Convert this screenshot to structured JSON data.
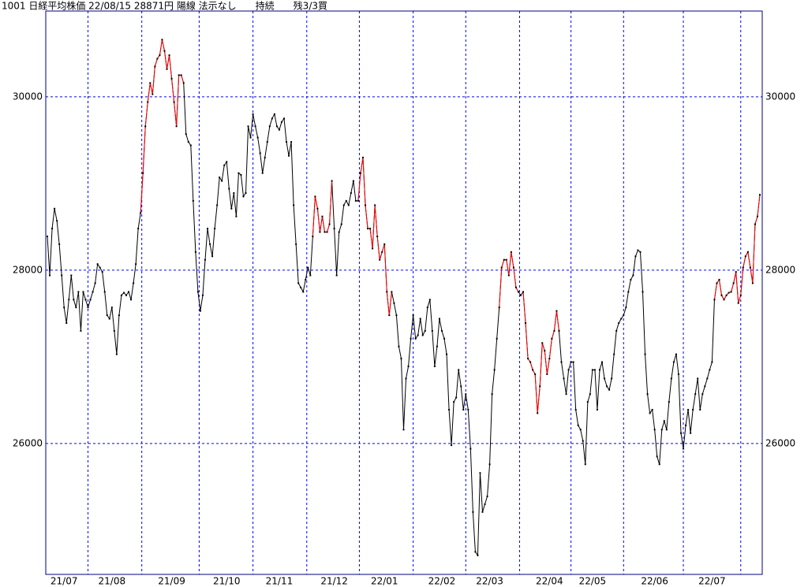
{
  "chart_data": {
    "type": "line",
    "title": "1001 日経平均株価 22/08/15 28871円 陽線 法示なし　　持続　　残3/3買",
    "categories": [
      null,
      null,
      null,
      null,
      null,
      null,
      null,
      "21/07",
      null,
      null,
      null,
      null,
      null,
      null,
      null,
      null,
      null,
      null,
      null,
      null,
      null,
      null,
      null,
      null,
      null,
      null,
      null,
      "21/08",
      null,
      null,
      null,
      null,
      null,
      null,
      null,
      null,
      null,
      null,
      null,
      null,
      null,
      null,
      null,
      null,
      null,
      null,
      null,
      null,
      null,
      null,
      null,
      null,
      "21/09",
      null,
      null,
      null,
      null,
      null,
      null,
      null,
      null,
      null,
      null,
      null,
      null,
      null,
      null,
      null,
      null,
      null,
      null,
      null,
      null,
      null,
      null,
      "21/10",
      null,
      null,
      null,
      null,
      null,
      null,
      null,
      null,
      null,
      null,
      null,
      null,
      null,
      null,
      null,
      null,
      null,
      null,
      null,
      null,
      null,
      "21/11",
      null,
      null,
      null,
      null,
      null,
      null,
      null,
      null,
      null,
      null,
      null,
      null,
      null,
      null,
      null,
      null,
      null,
      null,
      null,
      null,
      null,
      null,
      "21/12",
      null,
      null,
      null,
      null,
      null,
      null,
      null,
      null,
      null,
      null,
      null,
      null,
      null,
      null,
      null,
      null,
      null,
      null,
      null,
      null,
      "22/01",
      null,
      null,
      null,
      null,
      null,
      null,
      null,
      null,
      null,
      null,
      null,
      null,
      null,
      null,
      null,
      null,
      null,
      null,
      null,
      null,
      null,
      null,
      null,
      "22/02",
      null,
      null,
      null,
      null,
      null,
      null,
      null,
      null,
      null,
      null,
      null,
      null,
      null,
      null,
      null,
      null,
      null,
      null,
      null,
      "22/03",
      null,
      null,
      null,
      null,
      null,
      null,
      null,
      null,
      null,
      null,
      null,
      null,
      null,
      null,
      null,
      null,
      null,
      null,
      null,
      null,
      null,
      null,
      null,
      null,
      "22/04",
      null,
      null,
      null,
      null,
      null,
      null,
      null,
      null,
      null,
      null,
      null,
      null,
      null,
      null,
      null,
      null,
      null,
      "22/05",
      null,
      null,
      null,
      null,
      null,
      null,
      null,
      null,
      null,
      null,
      null,
      null,
      null,
      null,
      null,
      null,
      null,
      null,
      null,
      null,
      null,
      null,
      null,
      null,
      null,
      "22/06",
      null,
      null,
      null,
      null,
      null,
      null,
      null,
      null,
      null,
      null,
      null,
      null,
      null,
      null,
      null,
      null,
      null,
      null,
      null,
      null,
      null,
      null,
      null,
      "22/07",
      null,
      null,
      null,
      null,
      null,
      null,
      null,
      null,
      null,
      null,
      null,
      null,
      null,
      null,
      null,
      null,
      null,
      null,
      null,
      null
    ],
    "series": [
      {
        "color": "#000000",
        "markers": true,
        "values": [
          28390,
          27940,
          28480,
          28710,
          28570,
          28300,
          27940,
          27570,
          27390,
          27660,
          27940,
          27660,
          27570,
          27750,
          27300,
          27750,
          27660,
          27570,
          27660,
          27750,
          27850,
          28070,
          28030,
          27980,
          27750,
          27480,
          27440,
          27570,
          27300,
          27030,
          27480,
          27710,
          27740,
          27710,
          27750,
          27660,
          27850,
          28070,
          28480,
          28660,
          29120,
          29660,
          29940,
          30160,
          30030,
          30350,
          30440,
          30480,
          30660,
          30530,
          30320,
          30480,
          30210,
          29940,
          29660,
          30250,
          30250,
          30160,
          29570,
          29480,
          29440,
          28800,
          28210,
          27750,
          27530,
          27710,
          28120,
          28480,
          28300,
          28160,
          28480,
          28750,
          29070,
          29030,
          29210,
          29250,
          28940,
          28710,
          28890,
          28620,
          29120,
          29100,
          28850,
          28890,
          29660,
          29530,
          29800,
          29660,
          29530,
          29350,
          29120,
          29300,
          29480,
          29660,
          29750,
          29800,
          29660,
          29620,
          29710,
          29750,
          29480,
          29320,
          29480,
          28750,
          28300,
          27850,
          27800,
          27750,
          27890,
          28030,
          27940,
          28390,
          28850,
          28710,
          28440,
          28620,
          28440,
          28440,
          28530,
          29030,
          28480,
          27940,
          28440,
          28530,
          28750,
          28800,
          28750,
          28890,
          29030,
          28800,
          28800,
          29120,
          29300,
          28750,
          28480,
          28480,
          28250,
          28750,
          28390,
          28120,
          28210,
          28300,
          27750,
          27480,
          27750,
          27620,
          27480,
          27120,
          26980,
          26160,
          26750,
          26890,
          27210,
          27480,
          27210,
          27250,
          27440,
          27250,
          27300,
          27570,
          27660,
          27300,
          26890,
          27120,
          27440,
          27300,
          27210,
          27030,
          26390,
          25980,
          26480,
          26530,
          26850,
          26660,
          26390,
          26570,
          26390,
          25940,
          25210,
          24750,
          24710,
          25660,
          25210,
          25300,
          25390,
          25760,
          26570,
          26850,
          27210,
          27570,
          28030,
          28120,
          28120,
          27940,
          28210,
          28030,
          27800,
          27750,
          27710,
          27750,
          27390,
          26980,
          26940,
          26850,
          26800,
          26350,
          26660,
          27160,
          27070,
          26800,
          26980,
          27210,
          27300,
          27530,
          27300,
          26940,
          26750,
          26570,
          26850,
          26940,
          26940,
          26390,
          26210,
          26160,
          26030,
          25760,
          26480,
          26570,
          26850,
          26850,
          26390,
          26850,
          26940,
          26750,
          26660,
          26620,
          26750,
          27030,
          27300,
          27390,
          27440,
          27480,
          27570,
          27750,
          27890,
          27940,
          28160,
          28230,
          28210,
          27750,
          27030,
          26570,
          26350,
          26390,
          26160,
          25850,
          25760,
          26160,
          26260,
          26160,
          26480,
          26750,
          26940,
          27030,
          26800,
          26120,
          25940,
          26210,
          26390,
          26120,
          26390,
          26570,
          26750,
          26390,
          26570,
          26660,
          26750,
          26850,
          26940,
          27660,
          27850,
          27890,
          27710,
          27660,
          27710,
          27740,
          27750,
          27850,
          27980,
          27620,
          27710,
          28030,
          28160,
          28210,
          28030,
          27850,
          28530,
          28620,
          28870
        ]
      },
      {
        "color": "#ff0000",
        "markers": false,
        "values": [
          null,
          null,
          null,
          null,
          null,
          null,
          null,
          null,
          null,
          null,
          null,
          null,
          null,
          null,
          null,
          null,
          null,
          null,
          null,
          null,
          null,
          null,
          null,
          null,
          null,
          null,
          null,
          null,
          null,
          null,
          null,
          null,
          null,
          null,
          null,
          null,
          null,
          null,
          null,
          28660,
          29120,
          29660,
          29940,
          30160,
          30030,
          30350,
          30440,
          30480,
          30660,
          30530,
          30320,
          30480,
          30210,
          29940,
          29660,
          30250,
          30250,
          30160,
          null,
          null,
          null,
          null,
          null,
          null,
          null,
          null,
          null,
          null,
          null,
          null,
          null,
          null,
          null,
          null,
          null,
          null,
          null,
          null,
          null,
          null,
          null,
          null,
          null,
          null,
          null,
          null,
          null,
          null,
          null,
          null,
          null,
          null,
          null,
          null,
          null,
          null,
          null,
          null,
          null,
          null,
          null,
          null,
          null,
          null,
          null,
          null,
          null,
          null,
          null,
          null,
          null,
          28390,
          28850,
          28710,
          28440,
          28620,
          28440,
          28440,
          28530,
          29030,
          null,
          null,
          null,
          null,
          null,
          null,
          null,
          null,
          null,
          null,
          28800,
          29120,
          29300,
          28750,
          28480,
          28480,
          28250,
          28750,
          28390,
          28120,
          28210,
          28300,
          27750,
          27480,
          27750,
          null,
          null,
          null,
          null,
          null,
          null,
          null,
          null,
          null,
          null,
          null,
          null,
          null,
          null,
          null,
          null,
          null,
          null,
          null,
          null,
          null,
          null,
          null,
          null,
          null,
          null,
          null,
          null,
          null,
          null,
          null,
          null,
          null,
          null,
          null,
          null,
          null,
          null,
          null,
          null,
          null,
          null,
          null,
          null,
          27570,
          28030,
          28120,
          28120,
          27940,
          28210,
          28030,
          27800,
          27750,
          null,
          27750,
          27390,
          26980,
          26940,
          26850,
          26800,
          26350,
          26660,
          27160,
          27070,
          26800,
          26980,
          27210,
          27300,
          27530,
          27300,
          null,
          null,
          null,
          null,
          null,
          null,
          null,
          null,
          null,
          null,
          null,
          null,
          null,
          null,
          null,
          null,
          null,
          null,
          null,
          null,
          null,
          null,
          null,
          null,
          null,
          null,
          null,
          null,
          null,
          null,
          null,
          null,
          null,
          null,
          null,
          null,
          null,
          null,
          null,
          null,
          null,
          null,
          null,
          null,
          null,
          null,
          null,
          null,
          null,
          null,
          null,
          null,
          null,
          null,
          null,
          null,
          null,
          null,
          null,
          null,
          null,
          null,
          null,
          null,
          27660,
          27850,
          27890,
          27710,
          27660,
          27710,
          27740,
          27750,
          27850,
          27980,
          27620,
          27710,
          28030,
          28160,
          28210,
          28030,
          27850,
          28530,
          28620,
          28870
        ]
      }
    ],
    "ylim": [
      24490,
      30990
    ],
    "yticks": [
      26000,
      28000,
      30000
    ],
    "grid": true,
    "grid_color": "#0000ff",
    "frame_color": "#000080"
  }
}
